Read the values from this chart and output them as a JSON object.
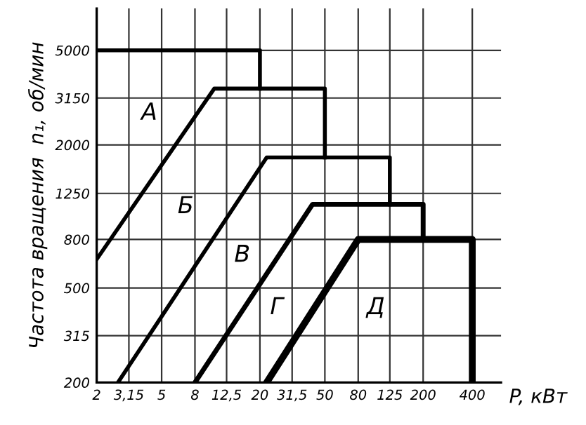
{
  "chart_data": {
    "type": "line",
    "log": "xy",
    "xlabel": "P, кВт",
    "ylabel": "Частота вращения  n₁, об/мин",
    "xlim": [
      2,
      600
    ],
    "ylim": [
      200,
      7500
    ],
    "xticks": [
      2,
      {
        "value": 3.15,
        "label": "3,15"
      },
      5,
      8,
      {
        "value": 12.5,
        "label": "12,5"
      },
      20,
      {
        "value": 31.5,
        "label": "31,5"
      },
      50,
      80,
      125,
      200,
      400
    ],
    "yticks": [
      200,
      315,
      500,
      800,
      1250,
      2000,
      3150,
      5000
    ],
    "grid": true,
    "legend": false,
    "marker": "none",
    "line_style": "solid",
    "series": [
      {
        "color": "#000000",
        "x": [
          2,
          20,
          20
        ],
        "values": [
          5000,
          5000,
          3450
        ]
      },
      {
        "color": "#000000",
        "x": [
          2,
          10.5,
          50,
          50
        ],
        "values": [
          660,
          3450,
          3450,
          1770
        ]
      },
      {
        "color": "#000000",
        "x": [
          2.7,
          22,
          125,
          125
        ],
        "values": [
          200,
          1770,
          1770,
          1124
        ]
      },
      {
        "color": "#000000",
        "x": [
          8,
          42,
          200,
          200
        ],
        "values": [
          200,
          1124,
          1124,
          800
        ]
      },
      {
        "color": "#000000",
        "x": [
          22,
          80,
          400,
          400
        ],
        "values": [
          200,
          800,
          800,
          200
        ]
      }
    ],
    "annotations": [
      "А",
      "Б",
      "В",
      "Г",
      "Д"
    ]
  }
}
